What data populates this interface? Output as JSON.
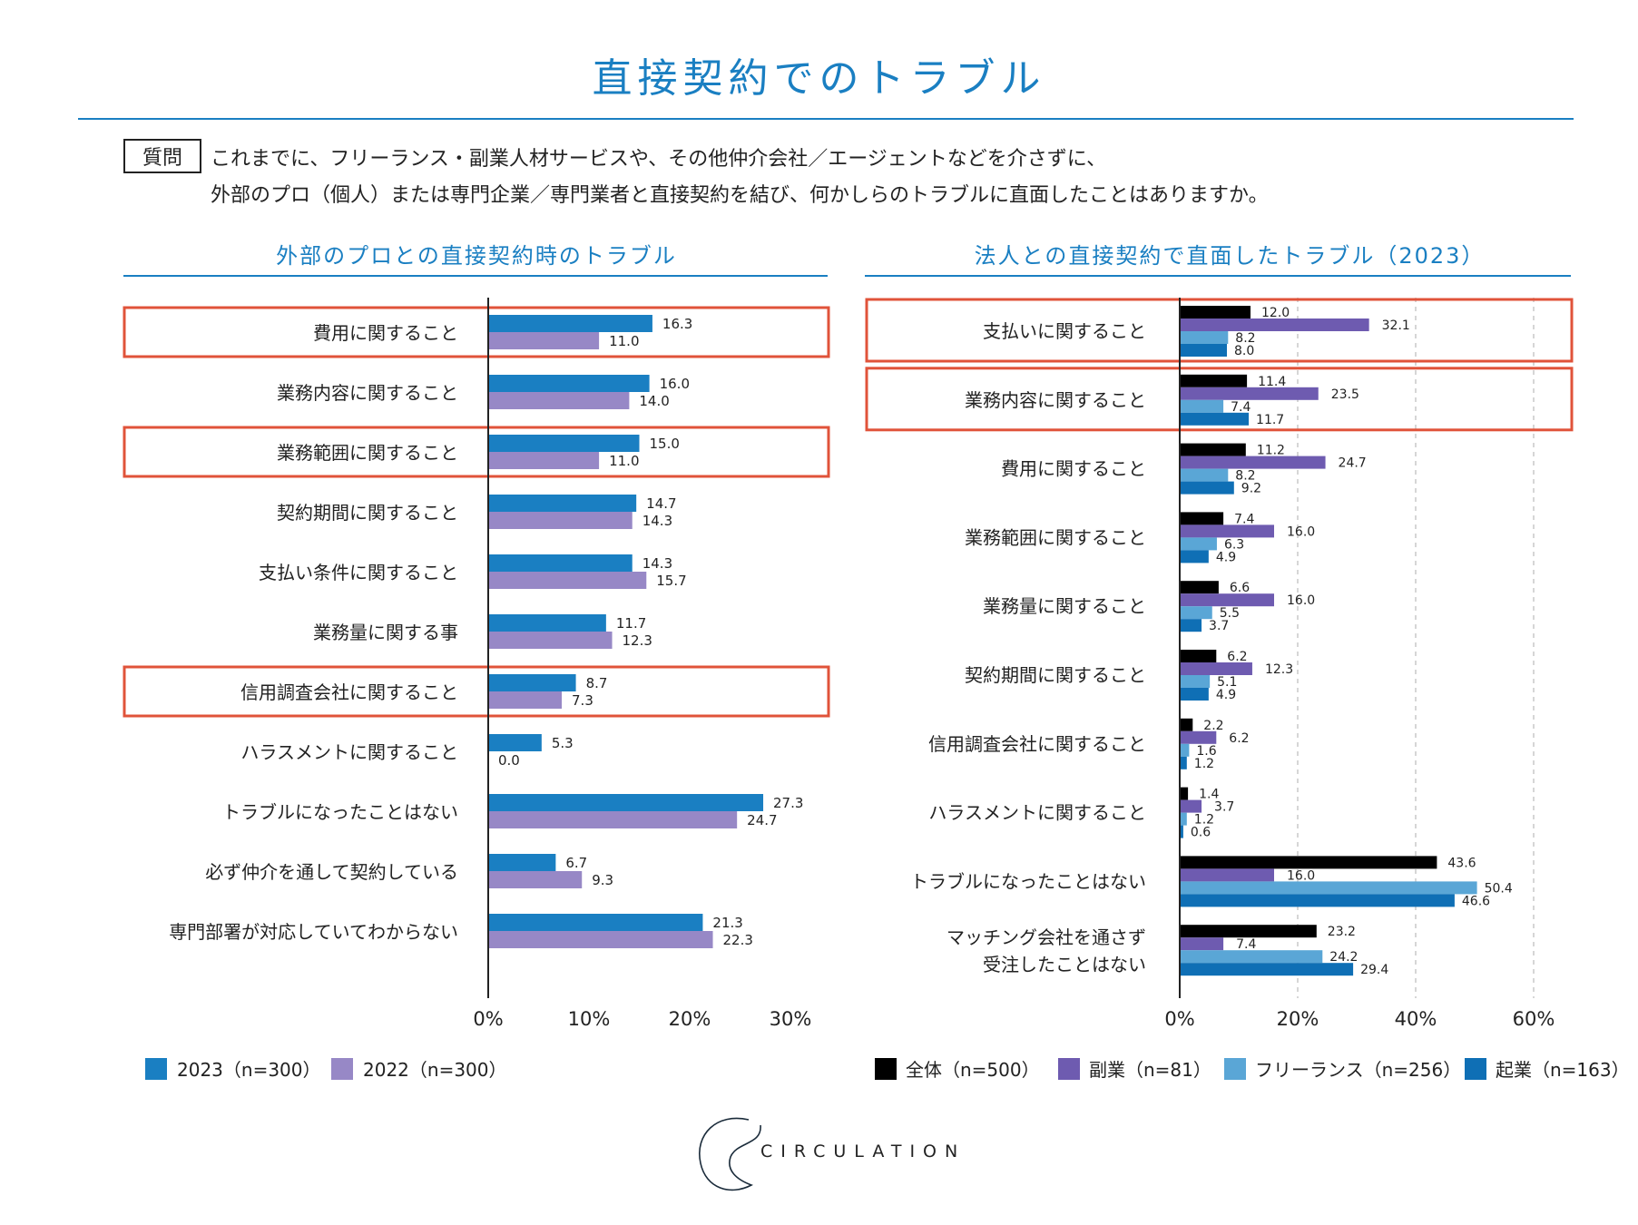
{
  "header": {
    "title": "直接契約でのトラブル",
    "question_label": "質問",
    "question_line1": "これまでに、フリーランス・副業人材サービスや、その他仲介会社／エージェントなどを介さずに、",
    "question_line2": "外部のプロ（個人）または専門企業／専門業者と直接契約を結び、何かしらのトラブルに直面したことはありますか。"
  },
  "logo": {
    "text": "CIRCULATION"
  },
  "colors": {
    "accent": "#1a7fc2",
    "highlight": "#e0533a",
    "s2023": "#1a7fc2",
    "s2022": "#9788c6",
    "all": "#000000",
    "side": "#6e5bb0",
    "freelance": "#5aa6d6",
    "startup": "#0f6fb5"
  },
  "chart_data": [
    {
      "type": "bar",
      "orientation": "horizontal",
      "title": "外部のプロとの直接契約時のトラブル",
      "categories": [
        "費用に関すること",
        "業務内容に関すること",
        "業務範囲に関すること",
        "契約期間に関すること",
        "支払い条件に関すること",
        "業務量に関する事",
        "信用調査会社に関すること",
        "ハラスメントに関すること",
        "トラブルになったことはない",
        "必ず仲介を通して契約している",
        "専門部署が対応していてわからない"
      ],
      "series": [
        {
          "name": "2023（n=300）",
          "values": [
            16.3,
            16.0,
            15.0,
            14.7,
            14.3,
            11.7,
            8.7,
            5.3,
            27.3,
            6.7,
            21.3
          ]
        },
        {
          "name": "2022（n=300）",
          "values": [
            11.0,
            14.0,
            11.0,
            14.3,
            15.7,
            12.3,
            7.3,
            0.0,
            24.7,
            9.3,
            22.3
          ]
        }
      ],
      "highlighted": [
        0,
        2,
        6
      ],
      "xlim": [
        0,
        35
      ],
      "xticks": [
        "0%",
        "10%",
        "20%",
        "30%"
      ],
      "grid": false,
      "legend": "bottom-left"
    },
    {
      "type": "bar",
      "orientation": "horizontal",
      "title": "法人との直接契約で直面したトラブル（2023）",
      "categories": [
        "支払いに関すること",
        "業務内容に関すること",
        "費用に関すること",
        "業務範囲に関すること",
        "業務量に関すること",
        "契約期間に関すること",
        "信用調査会社に関すること",
        "ハラスメントに関すること",
        "トラブルになったことはない",
        "マッチング会社を通さず\n受注したことはない"
      ],
      "series": [
        {
          "name": "全体（n=500）",
          "values": [
            12.0,
            11.4,
            11.2,
            7.4,
            6.6,
            6.2,
            2.2,
            1.4,
            43.6,
            23.2
          ]
        },
        {
          "name": "副業（n=81）",
          "values": [
            32.1,
            23.5,
            24.7,
            16.0,
            16.0,
            12.3,
            6.2,
            3.7,
            16.0,
            7.4
          ]
        },
        {
          "name": "フリーランス（n=256）",
          "values": [
            8.2,
            7.4,
            8.2,
            6.3,
            5.5,
            5.1,
            1.6,
            1.2,
            50.4,
            24.2
          ]
        },
        {
          "name": "起業（n=163）",
          "values": [
            8.0,
            11.7,
            9.2,
            4.9,
            3.7,
            4.9,
            1.2,
            0.6,
            46.6,
            29.4
          ]
        }
      ],
      "highlighted": [
        0,
        1
      ],
      "xlim": [
        0,
        60
      ],
      "xticks": [
        "0%",
        "20%",
        "40%",
        "60%"
      ],
      "grid": true,
      "legend": "bottom"
    }
  ]
}
